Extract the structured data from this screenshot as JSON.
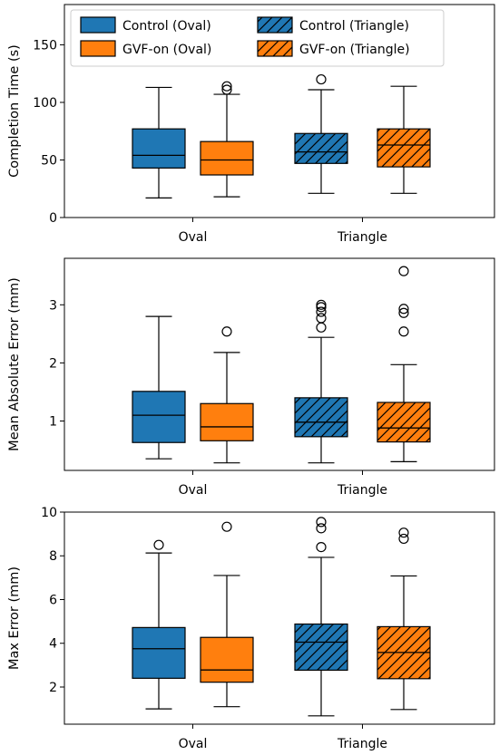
{
  "colors": {
    "control": "#1f77b4",
    "gvf": "#ff7f0e",
    "median": "#000000",
    "whisker": "#000000"
  },
  "legend": {
    "placement": "top-left",
    "entries": [
      {
        "label": "Control (Oval)",
        "color": "#1f77b4",
        "hatch": false
      },
      {
        "label": "GVF-on (Oval)",
        "color": "#ff7f0e",
        "hatch": false
      },
      {
        "label": "Control (Triangle)",
        "color": "#1f77b4",
        "hatch": true
      },
      {
        "label": "GVF-on (Triangle)",
        "color": "#ff7f0e",
        "hatch": true
      }
    ]
  },
  "chart_data": [
    {
      "type": "box",
      "ylabel": "Completion Time (s)",
      "categories": [
        "Oval",
        "Triangle"
      ],
      "ylim": [
        0,
        185
      ],
      "yticks": [
        0,
        50,
        100,
        150
      ],
      "grid": false,
      "boxes": [
        {
          "group": "Control (Oval)",
          "category": "Oval",
          "color": "#1f77b4",
          "hatch": false,
          "whislo": 17,
          "q1": 43,
          "med": 54,
          "q3": 77,
          "whishi": 113,
          "fliers": []
        },
        {
          "group": "GVF-on (Oval)",
          "category": "Oval",
          "color": "#ff7f0e",
          "hatch": false,
          "whislo": 18,
          "q1": 37,
          "med": 50,
          "q3": 66,
          "whishi": 107,
          "fliers": [
            111,
            114
          ]
        },
        {
          "group": "Control (Triangle)",
          "category": "Triangle",
          "color": "#1f77b4",
          "hatch": true,
          "whislo": 21,
          "q1": 47,
          "med": 57,
          "q3": 73,
          "whishi": 111,
          "fliers": [
            120
          ]
        },
        {
          "group": "GVF-on (Triangle)",
          "category": "Triangle",
          "color": "#ff7f0e",
          "hatch": true,
          "whislo": 21,
          "q1": 44,
          "med": 63,
          "q3": 77,
          "whishi": 114,
          "fliers": []
        }
      ]
    },
    {
      "type": "box",
      "ylabel": "Mean Absolute Error (mm)",
      "categories": [
        "Oval",
        "Triangle"
      ],
      "ylim": [
        0.15,
        3.8
      ],
      "yticks": [
        1,
        2,
        3
      ],
      "grid": false,
      "boxes": [
        {
          "group": "Control (Oval)",
          "category": "Oval",
          "color": "#1f77b4",
          "hatch": false,
          "whislo": 0.35,
          "q1": 0.63,
          "med": 1.1,
          "q3": 1.51,
          "whishi": 2.8,
          "fliers": []
        },
        {
          "group": "GVF-on (Oval)",
          "category": "Oval",
          "color": "#ff7f0e",
          "hatch": false,
          "whislo": 0.28,
          "q1": 0.66,
          "med": 0.9,
          "q3": 1.3,
          "whishi": 2.18,
          "fliers": [
            2.54
          ]
        },
        {
          "group": "Control (Triangle)",
          "category": "Triangle",
          "color": "#1f77b4",
          "hatch": true,
          "whislo": 0.28,
          "q1": 0.73,
          "med": 0.98,
          "q3": 1.4,
          "whishi": 2.44,
          "fliers": [
            2.61,
            2.77,
            2.88,
            2.96,
            3.0
          ]
        },
        {
          "group": "GVF-on (Triangle)",
          "category": "Triangle",
          "color": "#ff7f0e",
          "hatch": true,
          "whislo": 0.3,
          "q1": 0.64,
          "med": 0.88,
          "q3": 1.32,
          "whishi": 1.97,
          "fliers": [
            2.54,
            2.86,
            2.93,
            3.58
          ]
        }
      ]
    },
    {
      "type": "box",
      "ylabel": "Max Error (mm)",
      "categories": [
        "Oval",
        "Triangle"
      ],
      "ylim": [
        0.3,
        10.0
      ],
      "yticks": [
        2,
        4,
        6,
        8,
        10
      ],
      "grid": false,
      "boxes": [
        {
          "group": "Control (Oval)",
          "category": "Oval",
          "color": "#1f77b4",
          "hatch": false,
          "whislo": 1.0,
          "q1": 2.4,
          "med": 3.75,
          "q3": 4.72,
          "whishi": 8.13,
          "fliers": [
            8.5
          ]
        },
        {
          "group": "GVF-on (Oval)",
          "category": "Oval",
          "color": "#ff7f0e",
          "hatch": false,
          "whislo": 1.1,
          "q1": 2.22,
          "med": 2.78,
          "q3": 4.27,
          "whishi": 7.1,
          "fliers": [
            9.33
          ]
        },
        {
          "group": "Control (Triangle)",
          "category": "Triangle",
          "color": "#1f77b4",
          "hatch": true,
          "whislo": 0.68,
          "q1": 2.77,
          "med": 4.05,
          "q3": 4.88,
          "whishi": 7.93,
          "fliers": [
            8.4,
            9.26,
            9.55
          ]
        },
        {
          "group": "GVF-on (Triangle)",
          "category": "Triangle",
          "color": "#ff7f0e",
          "hatch": true,
          "whislo": 0.97,
          "q1": 2.38,
          "med": 3.58,
          "q3": 4.76,
          "whishi": 7.08,
          "fliers": [
            8.78,
            9.06
          ]
        }
      ]
    }
  ]
}
